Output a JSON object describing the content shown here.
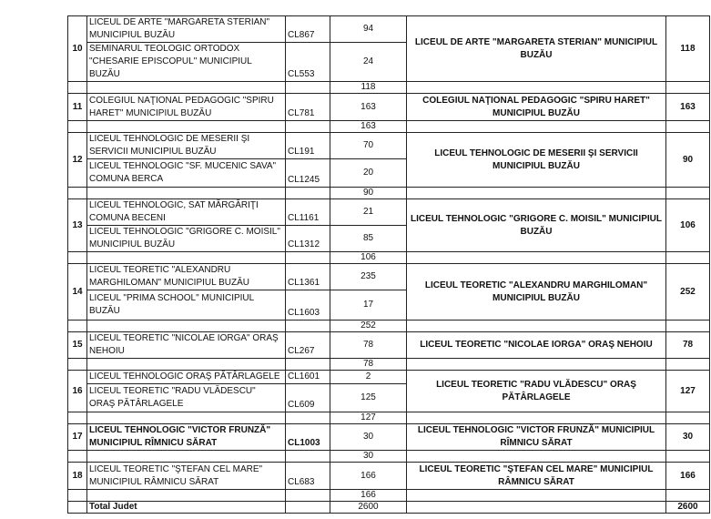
{
  "groups": [
    {
      "no": "10",
      "schools": [
        {
          "name": "LICEUL DE ARTE \"MARGARETA STERIAN\" MUNICIPIUL BUZĂU",
          "code": "CL867",
          "value": "94"
        },
        {
          "name": "SEMINARUL TEOLOGIC ORTODOX \"CHESARIE EPISCOPUL\" MUNICIPIUL BUZĂU",
          "code": "CL553",
          "value": "24"
        }
      ],
      "merged_name": "LICEUL DE ARTE \"MARGARETA STERIAN\" MUNICIPIUL BUZĂU",
      "total": "118",
      "subtotal": "118"
    },
    {
      "no": "11",
      "schools": [
        {
          "name": "COLEGIUL NAŢIONAL PEDAGOGIC \"SPIRU HARET\" MUNICIPIUL BUZĂU",
          "code": "CL781",
          "value": "163"
        }
      ],
      "merged_name": "COLEGIUL NAŢIONAL PEDAGOGIC \"SPIRU HARET\" MUNICIPIUL BUZĂU",
      "total": "163",
      "subtotal": "163"
    },
    {
      "no": "12",
      "schools": [
        {
          "name": "LICEUL TEHNOLOGIC DE MESERII ŞI SERVICII MUNICIPIUL BUZĂU",
          "code": "CL191",
          "value": "70"
        },
        {
          "name": "LICEUL TEHNOLOGIC \"SF. MUCENIC SAVA\" COMUNA BERCA",
          "code": "CL1245",
          "value": "20"
        }
      ],
      "merged_name": "LICEUL TEHNOLOGIC DE MESERII ŞI SERVICII MUNICIPIUL BUZĂU",
      "total": "90",
      "subtotal": "90"
    },
    {
      "no": "13",
      "schools": [
        {
          "name": "LICEUL TEHNOLOGIC, SAT MĂRGĂRIŢI COMUNA BECENI",
          "code": "CL1161",
          "value": "21"
        },
        {
          "name": "LICEUL TEHNOLOGIC \"GRIGORE C. MOISIL\" MUNICIPIUL BUZĂU",
          "code": "CL1312",
          "value": "85"
        }
      ],
      "merged_name": "LICEUL TEHNOLOGIC \"GRIGORE C. MOISIL\" MUNICIPIUL BUZĂU",
      "total": "106",
      "subtotal": "106"
    },
    {
      "no": "14",
      "schools": [
        {
          "name": "LICEUL TEORETIC \"ALEXANDRU MARGHILOMAN\" MUNICIPIUL BUZĂU",
          "code": "CL1361",
          "value": "235"
        },
        {
          "name": "LICEUL \"PRIMA SCHOOL\" MUNICIPIUL BUZĂU",
          "code": "CL1603",
          "value": "17"
        }
      ],
      "merged_name": "LICEUL TEORETIC \"ALEXANDRU MARGHILOMAN\" MUNICIPIUL BUZĂU",
      "total": "252",
      "subtotal": "252"
    },
    {
      "no": "15",
      "schools": [
        {
          "name": "LICEUL TEORETIC \"NICOLAE IORGA\" ORAŞ NEHOIU",
          "code": "CL267",
          "value": "78"
        }
      ],
      "merged_name": "LICEUL TEORETIC \"NICOLAE IORGA\" ORAŞ NEHOIU",
      "total": "78",
      "subtotal": "78"
    },
    {
      "no": "16",
      "schools": [
        {
          "name": "LICEUL TEHNOLOGIC ORAŞ PĂTÂRLAGELE",
          "code": "CL1601",
          "value": "2"
        },
        {
          "name": "LICEUL TEORETIC \"RADU VLĂDESCU\" ORAŞ PĂTÂRLAGELE",
          "code": "CL609",
          "value": "125"
        }
      ],
      "merged_name": "LICEUL TEORETIC \"RADU VLĂDESCU\" ORAŞ PĂTÂRLAGELE",
      "total": "127",
      "subtotal": "127"
    },
    {
      "no": "17",
      "bold": true,
      "schools": [
        {
          "name": "LICEUL TEHNOLOGIC \"VICTOR FRUNZĂ\" MUNICIPIUL RÎMNICU SĂRAT",
          "code": "CL1003",
          "value": "30"
        }
      ],
      "merged_name": "LICEUL TEHNOLOGIC \"VICTOR FRUNZĂ\" MUNICIPIUL RÎMNICU SĂRAT",
      "total": "30",
      "subtotal": "30"
    },
    {
      "no": "18",
      "schools": [
        {
          "name": "LICEUL TEORETIC \"ŞTEFAN CEL MARE\" MUNICIPIUL RÂMNICU SĂRAT",
          "code": "CL683",
          "value": "166"
        }
      ],
      "merged_name": "LICEUL TEORETIC \"ŞTEFAN CEL MARE\" MUNICIPIUL RÂMNICU SĂRAT",
      "total": "166",
      "subtotal": "166"
    }
  ],
  "total_row": {
    "label": "Total Judet",
    "value": "2600",
    "total": "2600"
  }
}
